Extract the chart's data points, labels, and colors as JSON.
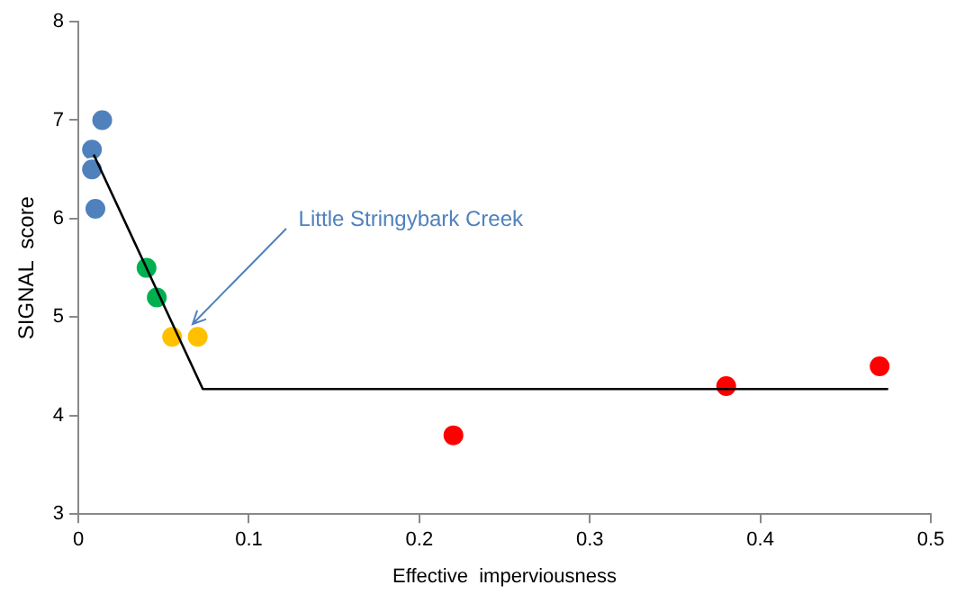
{
  "chart_data": {
    "type": "scatter",
    "xlabel": "Effective  imperviousness",
    "ylabel": "SIGNAL  score",
    "xlim": [
      0,
      0.5
    ],
    "xticks": [
      0,
      0.1,
      0.2,
      0.3,
      0.4,
      0.5
    ],
    "ylim": [
      3,
      8
    ],
    "yticks": [
      3,
      4,
      5,
      6,
      7,
      8
    ],
    "grid": false,
    "legend": false,
    "marker": "circle",
    "series": [
      {
        "color": "#4f81bd",
        "x": [
          0.014,
          0.008,
          0.008,
          0.01
        ],
        "values": [
          7.0,
          6.7,
          6.5,
          6.1
        ]
      },
      {
        "color": "#00b050",
        "x": [
          0.04,
          0.046
        ],
        "values": [
          5.5,
          5.2
        ]
      },
      {
        "color": "#ffc000",
        "x": [
          0.055,
          0.07
        ],
        "values": [
          4.8,
          4.8
        ]
      },
      {
        "color": "#ff0000",
        "x": [
          0.22,
          0.38,
          0.47
        ],
        "values": [
          3.8,
          4.3,
          4.5
        ]
      },
      {
        "type": "line",
        "color": "#000000",
        "marker": "none",
        "x": [
          0.009,
          0.073,
          0.475
        ],
        "values": [
          6.65,
          4.27,
          4.27
        ]
      }
    ],
    "annotations": [
      {
        "text": "Little Stringybark Creek",
        "x": 0.07,
        "y": 4.8
      }
    ]
  }
}
